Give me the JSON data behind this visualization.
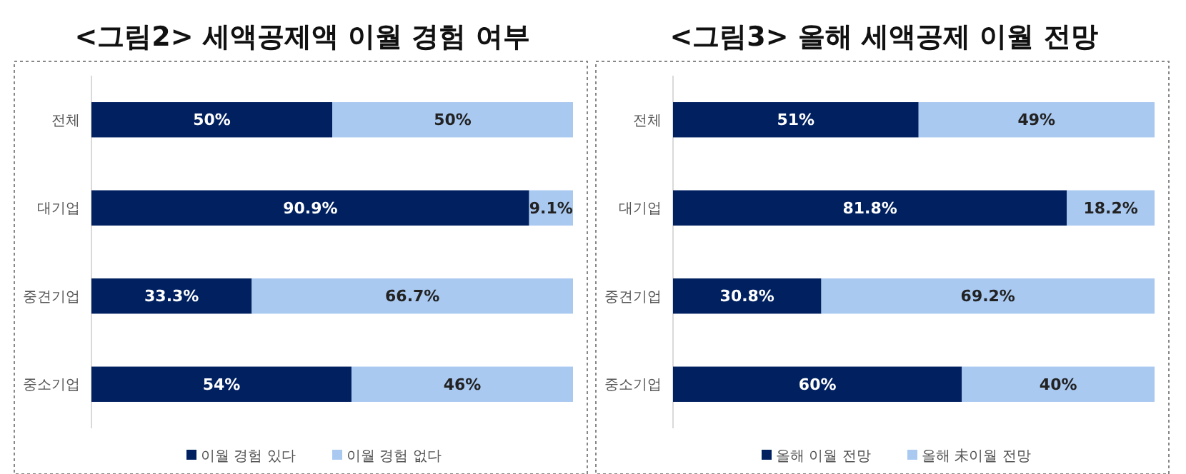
{
  "chart_data": [
    {
      "type": "bar",
      "title": "<그림2> 세액공제액 이월 경험 여부",
      "orientation": "horizontal",
      "stacked": true,
      "categories": [
        "전체",
        "대기업",
        "중견기업",
        "중소기업"
      ],
      "xlim": [
        0,
        100
      ],
      "tick_labels": "y",
      "legend": "bottom",
      "grid": false,
      "series": [
        {
          "name": "이월 경험 있다",
          "color": "#002060",
          "values": [
            50,
            90.9,
            33.3,
            54
          ],
          "value_labels": [
            "50%",
            "90.9%",
            "33.3%",
            "54%"
          ]
        },
        {
          "name": "이월 경험 없다",
          "color": "#a9c9f1",
          "values": [
            50,
            9.1,
            66.7,
            46
          ],
          "value_labels": [
            "50%",
            "9.1%",
            "66.7%",
            "46%"
          ]
        }
      ]
    },
    {
      "type": "bar",
      "title": "<그림3> 올해 세액공제 이월 전망",
      "orientation": "horizontal",
      "stacked": true,
      "categories": [
        "전체",
        "대기업",
        "중견기업",
        "중소기업"
      ],
      "xlim": [
        0,
        100
      ],
      "tick_labels": "y",
      "legend": "bottom",
      "grid": false,
      "series": [
        {
          "name": "올해 이월 전망",
          "color": "#002060",
          "values": [
            51,
            81.8,
            30.8,
            60
          ],
          "value_labels": [
            "51%",
            "81.8%",
            "30.8%",
            "60%"
          ]
        },
        {
          "name": "올해 未이월 전망",
          "color": "#a9c9f1",
          "values": [
            49,
            18.2,
            69.2,
            40
          ],
          "value_labels": [
            "49%",
            "18.2%",
            "69.2%",
            "40%"
          ]
        }
      ]
    }
  ]
}
